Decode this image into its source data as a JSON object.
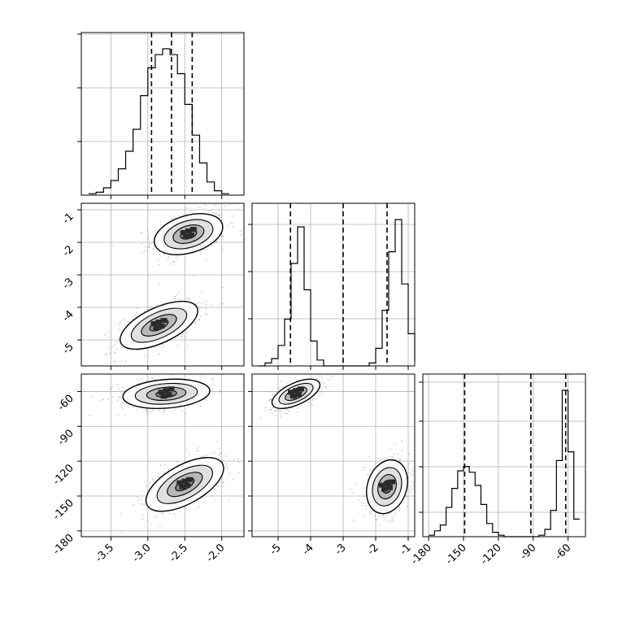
{
  "chart_data": {
    "type": "corner",
    "title": "",
    "parameters": [
      {
        "name": "",
        "limits": [
          -3.9,
          -1.7
        ],
        "ticks": [
          -3.5,
          -3.0,
          -2.5,
          -2.0
        ],
        "tick_labels": [
          "-3.5",
          "-3.0",
          "-2.5",
          "-2.0"
        ]
      },
      {
        "name": "",
        "limits": [
          -5.8,
          -0.8
        ],
        "ticks": [
          -5,
          -4,
          -3,
          -2,
          -1
        ],
        "tick_labels": [
          "-5",
          "-4",
          "-3",
          "-2",
          "-1"
        ]
      },
      {
        "name": "",
        "limits": [
          -185,
          -45
        ],
        "ticks": [
          -180,
          -150,
          -120,
          -90,
          -60
        ],
        "tick_labels": [
          "-180",
          "-150",
          "-120",
          "-90",
          "-60"
        ]
      }
    ],
    "histograms": [
      {
        "bin_edges": [
          -3.8,
          -3.7,
          -3.6,
          -3.5,
          -3.4,
          -3.3,
          -3.2,
          -3.1,
          -3.0,
          -2.9,
          -2.8,
          -2.7,
          -2.6,
          -2.5,
          -2.4,
          -2.3,
          -2.2,
          -2.1,
          -2.0,
          -1.9
        ],
        "counts": [
          0.01,
          0.02,
          0.05,
          0.1,
          0.18,
          0.3,
          0.45,
          0.68,
          0.87,
          0.96,
          1.0,
          0.96,
          0.83,
          0.62,
          0.41,
          0.22,
          0.09,
          0.03,
          0.01
        ],
        "quantiles": [
          -2.95,
          -2.68,
          -2.4
        ]
      },
      {
        "bin_edges": [
          -5.6,
          -5.4,
          -5.2,
          -5.0,
          -4.8,
          -4.6,
          -4.4,
          -4.2,
          -4.0,
          -3.8,
          -3.6,
          -3.4,
          -3.2,
          -3.0,
          -2.8,
          -2.6,
          -2.4,
          -2.2,
          -2.0,
          -1.8,
          -1.6,
          -1.4,
          -1.2,
          -1.0,
          -0.8
        ],
        "counts": [
          0.0,
          0.02,
          0.05,
          0.14,
          0.32,
          0.7,
          0.95,
          0.52,
          0.17,
          0.04,
          0.0,
          0.0,
          0.0,
          0.0,
          0.0,
          0.0,
          0.0,
          0.02,
          0.12,
          0.38,
          0.78,
          1.0,
          0.56,
          0.22,
          0.03
        ],
        "quantiles": [
          -4.62,
          -3.0,
          -1.65
        ]
      },
      {
        "bin_edges": [
          -180,
          -175,
          -170,
          -165,
          -160,
          -155,
          -150,
          -145,
          -140,
          -135,
          -130,
          -125,
          -120,
          -115,
          -110,
          -105,
          -100,
          -95,
          -90,
          -85,
          -80,
          -75,
          -70,
          -65,
          -60,
          -55,
          -50
        ],
        "counts": [
          0.01,
          0.04,
          0.08,
          0.2,
          0.33,
          0.45,
          0.48,
          0.44,
          0.35,
          0.22,
          0.09,
          0.03,
          0.01,
          0.0,
          0.0,
          0.0,
          0.0,
          0.0,
          0.0,
          0.01,
          0.05,
          0.18,
          0.52,
          1.0,
          0.58,
          0.12
        ],
        "quantiles": [
          -149,
          -92,
          -62
        ]
      }
    ],
    "joint_2d": [
      {
        "x_param": 0,
        "y_param": 1,
        "modes": [
          {
            "center": [
              -2.45,
              -1.75
            ],
            "sigma": [
              0.22,
              0.3
            ],
            "rho": 0.35
          },
          {
            "center": [
              -2.85,
              -4.55
            ],
            "sigma": [
              0.25,
              0.35
            ],
            "rho": 0.6
          }
        ]
      },
      {
        "x_param": 0,
        "y_param": 2,
        "modes": [
          {
            "center": [
              -2.75,
              -62
            ],
            "sigma": [
              0.28,
              6
            ],
            "rho": 0.2
          },
          {
            "center": [
              -2.5,
              -140
            ],
            "sigma": [
              0.25,
              11
            ],
            "rho": 0.6
          }
        ]
      },
      {
        "x_param": 1,
        "y_param": 2,
        "modes": [
          {
            "center": [
              -4.45,
              -62
            ],
            "sigma": [
              0.35,
              6
            ],
            "rho": 0.6
          },
          {
            "center": [
              -1.65,
              -142
            ],
            "sigma": [
              0.3,
              11
            ],
            "rho": 0.2
          }
        ]
      }
    ],
    "grid": true,
    "quantile_line_style": "dashed",
    "colors": {
      "line": "#000000",
      "grid": "#b0b0b0",
      "scatter": "#6e6e6e"
    }
  }
}
